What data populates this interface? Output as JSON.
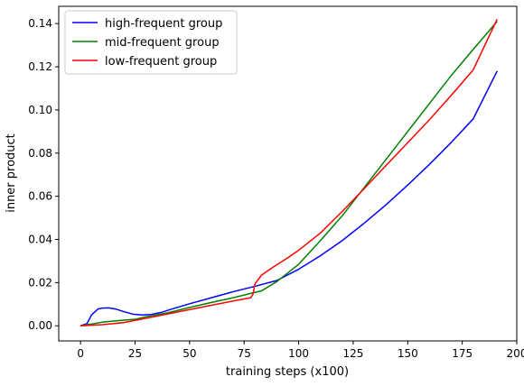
{
  "chart_data": {
    "type": "line",
    "xlabel": "training steps (x100)",
    "ylabel": "inner product",
    "xlim": [
      -10,
      200
    ],
    "ylim": [
      -0.007,
      0.148
    ],
    "xticks": [
      0,
      25,
      50,
      75,
      100,
      125,
      150,
      175,
      200
    ],
    "yticks": [
      0.0,
      0.02,
      0.04,
      0.06,
      0.08,
      0.1,
      0.12,
      0.14
    ],
    "ytick_labels": [
      "0.00",
      "0.02",
      "0.04",
      "0.06",
      "0.08",
      "0.10",
      "0.12",
      "0.14"
    ],
    "grid": false,
    "legend_position": "top-left",
    "series": [
      {
        "name": "high-frequent group",
        "color": "#0000ff",
        "points": [
          [
            0,
            0.0
          ],
          [
            3,
            0.001
          ],
          [
            5,
            0.005
          ],
          [
            8,
            0.0078
          ],
          [
            10,
            0.0082
          ],
          [
            13,
            0.0083
          ],
          [
            16,
            0.0078
          ],
          [
            20,
            0.0065
          ],
          [
            24,
            0.0054
          ],
          [
            28,
            0.005
          ],
          [
            32,
            0.0052
          ],
          [
            37,
            0.0062
          ],
          [
            42,
            0.0078
          ],
          [
            50,
            0.0102
          ],
          [
            60,
            0.013
          ],
          [
            70,
            0.0158
          ],
          [
            80,
            0.0183
          ],
          [
            90,
            0.021
          ],
          [
            100,
            0.0262
          ],
          [
            110,
            0.0325
          ],
          [
            120,
            0.0395
          ],
          [
            130,
            0.0475
          ],
          [
            140,
            0.056
          ],
          [
            150,
            0.0652
          ],
          [
            160,
            0.0748
          ],
          [
            170,
            0.085
          ],
          [
            180,
            0.0958
          ],
          [
            191,
            0.118
          ]
        ]
      },
      {
        "name": "mid-frequent group",
        "color": "#008000",
        "points": [
          [
            0,
            0.0
          ],
          [
            5,
            0.0008
          ],
          [
            10,
            0.0017
          ],
          [
            15,
            0.0022
          ],
          [
            20,
            0.0026
          ],
          [
            25,
            0.003
          ],
          [
            30,
            0.0042
          ],
          [
            40,
            0.006
          ],
          [
            50,
            0.0085
          ],
          [
            60,
            0.0108
          ],
          [
            70,
            0.013
          ],
          [
            78,
            0.015
          ],
          [
            83,
            0.0162
          ],
          [
            90,
            0.0205
          ],
          [
            100,
            0.0285
          ],
          [
            110,
            0.0395
          ],
          [
            120,
            0.051
          ],
          [
            130,
            0.064
          ],
          [
            140,
            0.077
          ],
          [
            150,
            0.09
          ],
          [
            160,
            0.103
          ],
          [
            170,
            0.116
          ],
          [
            180,
            0.128
          ],
          [
            191,
            0.141
          ]
        ]
      },
      {
        "name": "low-frequent group",
        "color": "#ff0000",
        "points": [
          [
            0,
            0.0
          ],
          [
            10,
            0.0005
          ],
          [
            20,
            0.0015
          ],
          [
            30,
            0.0035
          ],
          [
            40,
            0.0055
          ],
          [
            50,
            0.0075
          ],
          [
            60,
            0.0095
          ],
          [
            70,
            0.0115
          ],
          [
            78,
            0.013
          ],
          [
            79,
            0.0145
          ],
          [
            80,
            0.0195
          ],
          [
            83,
            0.0235
          ],
          [
            88,
            0.027
          ],
          [
            95,
            0.0315
          ],
          [
            100,
            0.035
          ],
          [
            110,
            0.043
          ],
          [
            120,
            0.053
          ],
          [
            130,
            0.0635
          ],
          [
            140,
            0.0742
          ],
          [
            150,
            0.0848
          ],
          [
            160,
            0.0955
          ],
          [
            170,
            0.1068
          ],
          [
            180,
            0.1185
          ],
          [
            191,
            0.142
          ]
        ]
      }
    ]
  }
}
